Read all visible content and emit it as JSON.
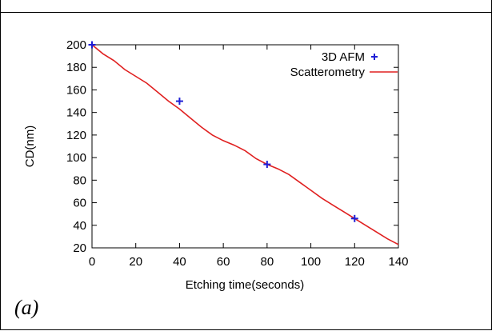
{
  "panel_label": "(a)",
  "chart_data": {
    "type": "line",
    "title": "",
    "xlabel": "Etching time(seconds)",
    "ylabel": "CD(nm)",
    "xlim": [
      0,
      140
    ],
    "ylim": [
      20,
      200
    ],
    "xticks": [
      0,
      20,
      40,
      60,
      80,
      100,
      120,
      140
    ],
    "yticks": [
      20,
      40,
      60,
      80,
      100,
      120,
      140,
      160,
      180,
      200
    ],
    "grid": false,
    "legend_position": "top-right",
    "series": [
      {
        "name": "3D AFM",
        "kind": "scatter",
        "marker": "plus",
        "color": "#1f1fd6",
        "x": [
          0,
          40,
          80,
          120
        ],
        "y": [
          200,
          150,
          94,
          46
        ]
      },
      {
        "name": "Scatterometry",
        "kind": "line",
        "color": "#e02020",
        "x": [
          0,
          5,
          10,
          15,
          20,
          25,
          30,
          35,
          40,
          45,
          50,
          55,
          60,
          65,
          70,
          75,
          80,
          85,
          90,
          95,
          100,
          105,
          110,
          115,
          120,
          125,
          130,
          135,
          140
        ],
        "y": [
          200,
          192,
          186,
          178,
          172,
          166,
          158,
          150,
          143,
          135,
          127,
          120,
          115,
          111,
          106,
          99,
          94,
          90,
          85,
          78,
          71,
          64,
          58,
          52,
          46,
          40,
          34,
          28,
          23
        ]
      }
    ]
  }
}
